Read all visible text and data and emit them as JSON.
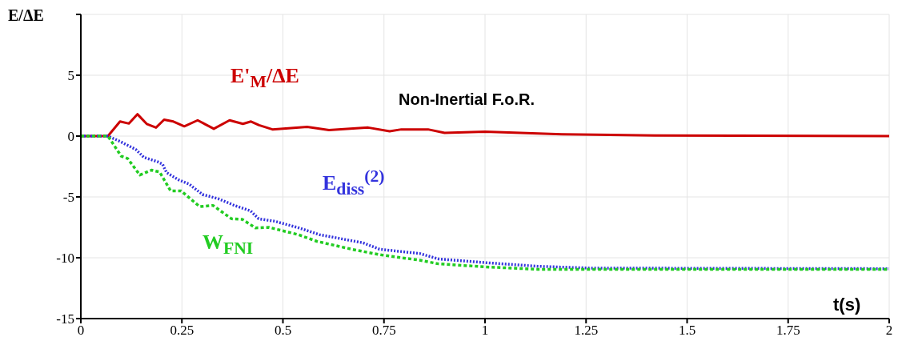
{
  "chart_data": {
    "type": "line",
    "ylabel": "E/ΔE",
    "xlabel": "t(s)",
    "annotations": [
      "Non-Inertial F.o.R."
    ],
    "xlim": [
      0,
      2
    ],
    "xticks": [
      0,
      0.25,
      0.5,
      0.75,
      1,
      1.25,
      1.5,
      1.75,
      2
    ],
    "ylim": [
      -15,
      10
    ],
    "yticks": [
      -15,
      -10,
      -5,
      0,
      5,
      {
        "value": 10,
        "label": null
      }
    ],
    "grid": true,
    "marker": "none",
    "series": [
      {
        "name": "E'$_{M}$/ΔE",
        "color": "#cc0000",
        "line_style": "solid",
        "x": [
          0,
          0.067,
          0.097,
          0.119,
          0.14,
          0.163,
          0.186,
          0.206,
          0.229,
          0.256,
          0.289,
          0.329,
          0.368,
          0.401,
          0.421,
          0.441,
          0.474,
          0.56,
          0.614,
          0.711,
          0.764,
          0.793,
          0.859,
          0.9,
          1.0,
          1.19,
          1.42,
          2
        ],
        "values": [
          0,
          0,
          1.2,
          1.03,
          1.8,
          1.0,
          0.7,
          1.35,
          1.2,
          0.8,
          1.3,
          0.6,
          1.3,
          1.0,
          1.2,
          0.9,
          0.55,
          0.75,
          0.5,
          0.7,
          0.4,
          0.55,
          0.55,
          0.26,
          0.37,
          0.15,
          0.05,
          0
        ]
      },
      {
        "name": "E$_{diss}$$^{(2)}$",
        "color": "#3333dd",
        "line_style": "dotted",
        "x": [
          0,
          0.067,
          0.097,
          0.136,
          0.156,
          0.189,
          0.202,
          0.212,
          0.242,
          0.268,
          0.301,
          0.34,
          0.38,
          0.42,
          0.44,
          0.48,
          0.54,
          0.59,
          0.67,
          0.698,
          0.739,
          0.838,
          0.885,
          1.0,
          1.13,
          1.26,
          2
        ],
        "values": [
          0,
          0,
          -0.44,
          -1.1,
          -1.75,
          -2.1,
          -2.3,
          -3.0,
          -3.6,
          -3.95,
          -4.8,
          -5.15,
          -5.7,
          -6.15,
          -6.8,
          -7.0,
          -7.55,
          -8.1,
          -8.6,
          -8.77,
          -9.3,
          -9.65,
          -10.1,
          -10.4,
          -10.7,
          -10.85,
          -10.9
        ]
      },
      {
        "name": "W$_{FNI}$",
        "color": "#22cc22",
        "line_style": "dashed",
        "x": [
          0,
          0.067,
          0.1,
          0.116,
          0.146,
          0.175,
          0.195,
          0.222,
          0.248,
          0.294,
          0.327,
          0.373,
          0.4,
          0.432,
          0.465,
          0.538,
          0.584,
          0.617,
          0.67,
          0.739,
          0.838,
          0.885,
          1.0,
          1.13,
          2
        ],
        "values": [
          0,
          0,
          -1.65,
          -1.85,
          -3.2,
          -2.8,
          -2.95,
          -4.5,
          -4.5,
          -5.8,
          -5.7,
          -6.8,
          -6.85,
          -7.55,
          -7.5,
          -8.1,
          -8.65,
          -8.9,
          -9.3,
          -9.75,
          -10.2,
          -10.5,
          -10.75,
          -10.95,
          -10.95
        ]
      }
    ]
  }
}
